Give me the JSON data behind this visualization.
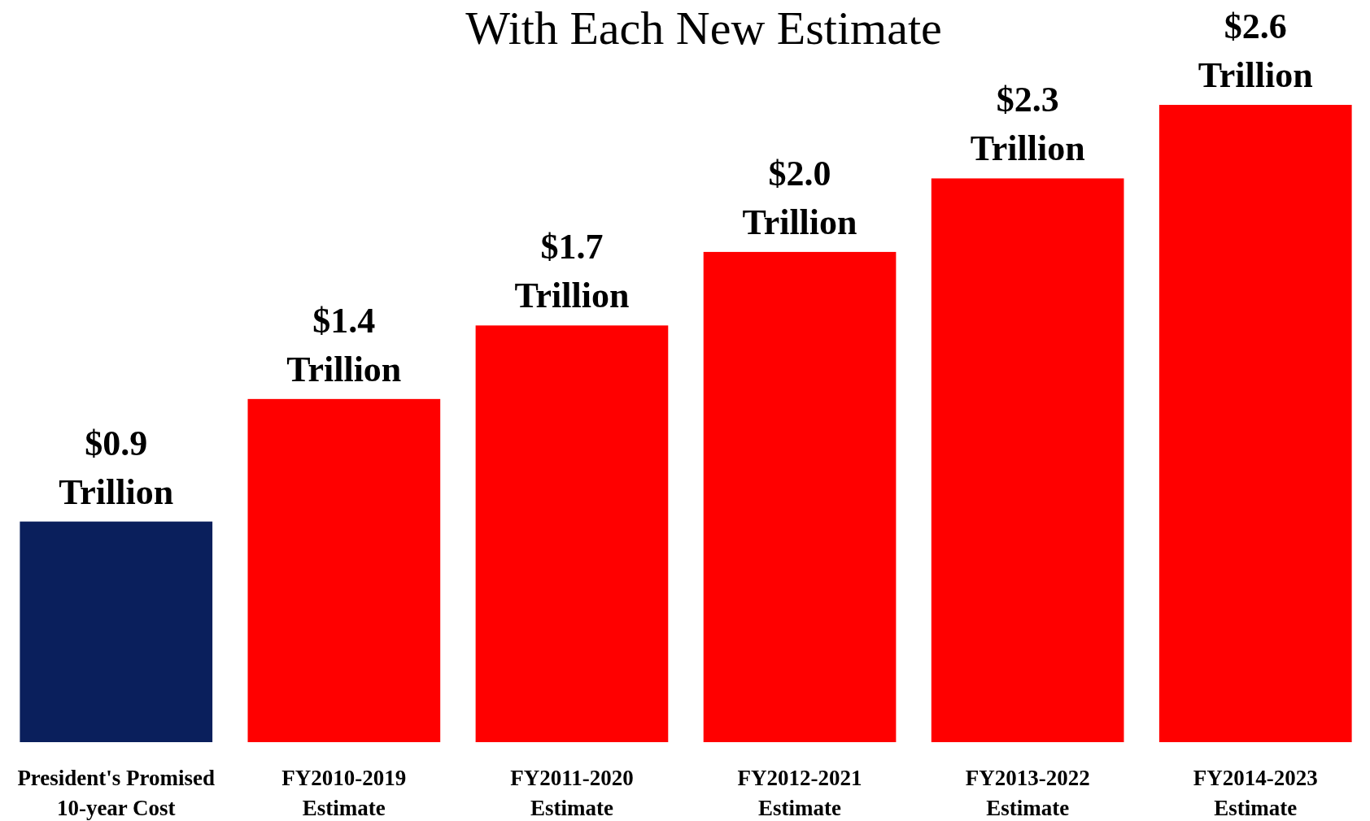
{
  "chart_data": {
    "type": "bar",
    "title": "With Each New Estimate",
    "categories": [
      "President's Promised\n10-year Cost",
      "FY2010-2019\nEstimate",
      "FY2011-2020\nEstimate",
      "FY2012-2021\nEstimate",
      "FY2013-2022\nEstimate",
      "FY2014-2023\nEstimate"
    ],
    "values": [
      0.9,
      1.4,
      1.7,
      2.0,
      2.3,
      2.6
    ],
    "colors": [
      "#0a1f5c",
      "#ff0000",
      "#ff0000",
      "#ff0000",
      "#ff0000",
      "#ff0000"
    ],
    "value_labels": [
      "$0.9\nTrillion",
      "$1.4\nTrillion",
      "$1.7\nTrillion",
      "$2.0\nTrillion",
      "$2.3\nTrillion",
      "$2.6\nTrillion"
    ]
  }
}
